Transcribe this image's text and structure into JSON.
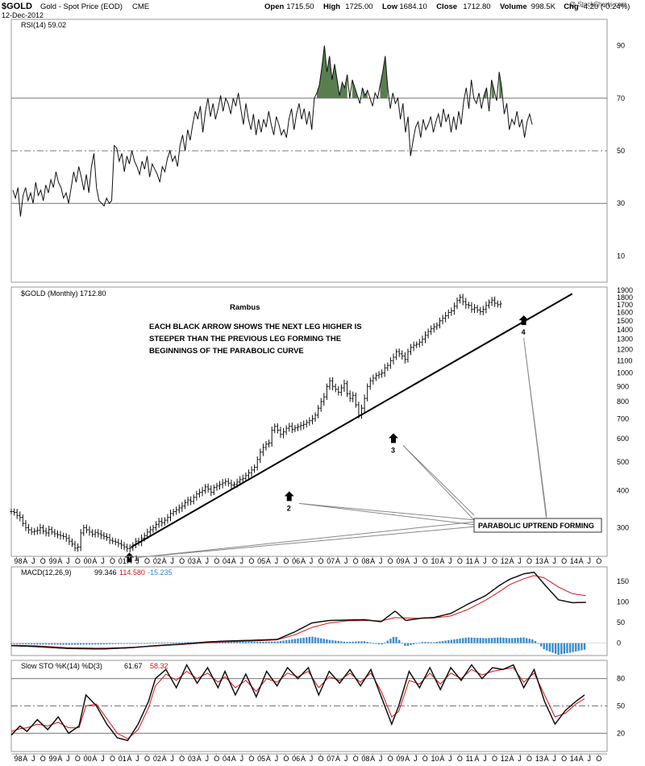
{
  "header": {
    "symbol": "$GOLD",
    "name": "Gold - Spot Price (EOD)",
    "exchange": "CME",
    "date": "12-Dec-2012",
    "copyright": "@ StockCharts.com",
    "stats": [
      {
        "label": "Open",
        "value": "1715.50"
      },
      {
        "label": "High",
        "value": "1725.00"
      },
      {
        "label": "Low",
        "value": "1684.10"
      },
      {
        "label": "Close",
        "value": "1712.80"
      },
      {
        "label": "Volume",
        "value": "998.5K"
      },
      {
        "label": "Chg",
        "value": "-4.20 (-0.24%)"
      }
    ]
  },
  "colors": {
    "rsi_overbought_fill": "#5a7d50",
    "rsi_oversold_fill": "#8a5060",
    "macd_signal": "#e01010",
    "macd_hist": "#3a8ccc",
    "sto_d": "#e01010",
    "histogram_label": "#2a8ad0"
  },
  "chart_data": [
    {
      "type": "line",
      "id": "rsi",
      "legend": "RSI(14) 59.02",
      "ylim": [
        0,
        100
      ],
      "yticks": [
        10,
        30,
        50,
        70,
        90
      ],
      "reference_lines": [
        30,
        50,
        70
      ],
      "last_value": 59.02,
      "values": [
        35,
        32,
        36,
        25,
        33,
        36,
        31,
        34,
        30,
        38,
        33,
        35,
        31,
        37,
        34,
        39,
        36,
        42,
        38,
        36,
        32,
        34,
        30,
        36,
        42,
        38,
        44,
        40,
        35,
        41,
        34,
        44,
        49,
        36,
        31,
        30,
        29,
        32,
        30,
        31,
        52,
        51,
        46,
        49,
        42,
        48,
        45,
        50,
        46,
        44,
        41,
        46,
        43,
        48,
        40,
        45,
        43,
        41,
        38,
        44,
        42,
        47,
        50,
        46,
        48,
        44,
        52,
        56,
        50,
        58,
        54,
        60,
        65,
        62,
        67,
        57,
        65,
        70,
        63,
        68,
        62,
        66,
        71,
        65,
        70,
        68,
        64,
        70,
        67,
        72,
        66,
        60,
        68,
        62,
        58,
        64,
        56,
        62,
        57,
        62,
        59,
        65,
        60,
        56,
        63,
        60,
        56,
        58,
        55,
        62,
        66,
        58,
        64,
        68,
        62,
        66,
        60,
        65,
        58,
        70,
        72,
        75,
        82,
        90,
        80,
        86,
        77,
        83,
        77,
        71,
        76,
        74,
        79,
        70,
        77,
        74,
        71,
        68,
        74,
        71,
        73,
        70,
        67,
        72,
        70,
        75,
        80,
        86,
        74,
        66,
        72,
        68,
        70,
        62,
        68,
        57,
        63,
        48,
        54,
        59,
        61,
        55,
        62,
        58,
        60,
        63,
        57,
        61,
        64,
        59,
        66,
        61,
        64,
        57,
        63,
        58,
        65,
        60,
        69,
        74,
        66,
        77,
        70,
        68,
        72,
        66,
        71,
        74,
        65,
        77,
        73,
        69,
        80,
        74,
        64,
        68,
        58,
        62,
        60,
        65,
        59,
        62,
        55,
        61,
        64,
        60
      ],
      "overbought_level": 70,
      "oversold_level": 30
    },
    {
      "type": "ohlc",
      "id": "price",
      "legend": "$GOLD (Monthly) 1712.80",
      "scale": "log",
      "ylim": [
        240,
        1950
      ],
      "yticks": [
        300,
        400,
        500,
        600,
        700,
        800,
        900,
        1000,
        1100,
        1200,
        1300,
        1400,
        1500,
        1600,
        1700,
        1800,
        1900
      ],
      "x_start": 1997.85,
      "x_end": 2015.0,
      "closes": [
        340,
        338,
        330,
        325,
        310,
        300,
        295,
        290,
        292,
        294,
        300,
        292,
        288,
        296,
        290,
        286,
        284,
        282,
        280,
        276,
        270,
        264,
        256,
        258,
        288,
        300,
        295,
        290,
        285,
        289,
        286,
        283,
        280,
        278,
        272,
        270,
        268,
        265,
        262,
        258,
        255,
        256,
        262,
        270,
        268,
        276,
        282,
        290,
        295,
        300,
        308,
        315,
        312,
        318,
        325,
        335,
        340,
        345,
        350,
        355,
        365,
        372,
        368,
        380,
        390,
        395,
        400,
        412,
        405,
        395,
        410,
        415,
        420,
        425,
        430,
        424,
        418,
        420,
        428,
        436,
        440,
        450,
        460,
        470,
        480,
        510,
        540,
        560,
        575,
        580,
        640,
        660,
        640,
        620,
        632,
        650,
        660,
        645,
        652,
        658,
        665,
        670,
        680,
        690,
        700,
        720,
        760,
        800,
        830,
        900,
        940,
        900,
        880,
        860,
        890,
        920,
        850,
        820,
        840,
        780,
        720,
        760,
        820,
        900,
        940,
        960,
        980,
        990,
        1000,
        1040,
        1060,
        1100,
        1130,
        1180,
        1160,
        1140,
        1110,
        1180,
        1220,
        1240,
        1250,
        1270,
        1300,
        1340,
        1380,
        1410,
        1430,
        1450,
        1500,
        1530,
        1560,
        1600,
        1620,
        1680,
        1760,
        1800,
        1740,
        1700,
        1690,
        1640,
        1660,
        1630,
        1610,
        1640,
        1690,
        1730,
        1760,
        1720,
        1700,
        1712
      ],
      "trendline": {
        "start": {
          "year": 2001.3,
          "price": 258
        },
        "end": {
          "year": 2013.3,
          "price": 1760
        }
      },
      "arrows": [
        {
          "label": "1",
          "year": 2001.25,
          "price": 247
        },
        {
          "label": "2",
          "year": 2005.85,
          "price": 398
        },
        {
          "label": "3",
          "year": 2008.85,
          "price": 625
        },
        {
          "label": "4",
          "year": 2012.6,
          "price": 1565
        }
      ],
      "annotation_author": "Rambus",
      "annotation_text": [
        "EACH BLACK ARROW SHOWS THE NEXT LEG HIGHER IS",
        "STEEPER THAN THE PREVIOUS LEG FORMING THE",
        "BEGINNINGS OF THE PARABOLIC CURVE"
      ],
      "callout": "PARABOLIC UPTREND FORMING"
    },
    {
      "type": "line",
      "id": "macd",
      "legend_name": "MACD(12,26,9)",
      "macd_value": "99.346",
      "signal_value": "114.580",
      "hist_value": "-15.235",
      "yticks": [
        0,
        50,
        100,
        150
      ],
      "ylim": [
        -30,
        185
      ],
      "x_start": 1997.85,
      "x_end": 2015.0,
      "macd": [
        [
          1997.85,
          -6
        ],
        [
          1998.5,
          -8
        ],
        [
          1999.5,
          -13
        ],
        [
          2000.5,
          -14
        ],
        [
          2001.3,
          -11
        ],
        [
          2002,
          -6
        ],
        [
          2002.8,
          -2
        ],
        [
          2003.5,
          3
        ],
        [
          2004,
          5
        ],
        [
          2004.8,
          7
        ],
        [
          2005.5,
          9
        ],
        [
          2006.0,
          27
        ],
        [
          2006.5,
          49
        ],
        [
          2007.0,
          55
        ],
        [
          2007.5,
          56
        ],
        [
          2008.0,
          57
        ],
        [
          2008.5,
          52
        ],
        [
          2008.9,
          78
        ],
        [
          2009.2,
          55
        ],
        [
          2009.7,
          61
        ],
        [
          2010.0,
          62
        ],
        [
          2010.5,
          72
        ],
        [
          2011.0,
          95
        ],
        [
          2011.5,
          115
        ],
        [
          2011.9,
          140
        ],
        [
          2012.2,
          155
        ],
        [
          2012.6,
          168
        ],
        [
          2012.9,
          172
        ],
        [
          2013.2,
          142
        ],
        [
          2013.6,
          105
        ],
        [
          2014.0,
          98
        ],
        [
          2014.4,
          99
        ]
      ],
      "signal": [
        [
          1997.85,
          -5
        ],
        [
          1998.5,
          -6
        ],
        [
          1999.5,
          -11
        ],
        [
          2000.5,
          -12
        ],
        [
          2001.3,
          -10
        ],
        [
          2002,
          -7
        ],
        [
          2002.8,
          -3
        ],
        [
          2003.5,
          1
        ],
        [
          2004,
          3
        ],
        [
          2004.8,
          5
        ],
        [
          2005.5,
          8
        ],
        [
          2006.0,
          20
        ],
        [
          2006.5,
          38
        ],
        [
          2007.0,
          49
        ],
        [
          2007.5,
          54
        ],
        [
          2008.0,
          55
        ],
        [
          2008.5,
          54
        ],
        [
          2008.9,
          62
        ],
        [
          2009.2,
          61
        ],
        [
          2009.7,
          60
        ],
        [
          2010.0,
          61
        ],
        [
          2010.5,
          66
        ],
        [
          2011.0,
          82
        ],
        [
          2011.5,
          104
        ],
        [
          2011.9,
          125
        ],
        [
          2012.2,
          142
        ],
        [
          2012.6,
          156
        ],
        [
          2012.9,
          164
        ],
        [
          2013.2,
          158
        ],
        [
          2013.6,
          136
        ],
        [
          2014.0,
          120
        ],
        [
          2014.4,
          115
        ]
      ],
      "histogram": [
        [
          1997.85,
          -2
        ],
        [
          1998.5,
          -3
        ],
        [
          1999.5,
          -4
        ],
        [
          2000.5,
          -3
        ],
        [
          2001.3,
          -1
        ],
        [
          2002,
          1
        ],
        [
          2002.8,
          2
        ],
        [
          2003.5,
          3
        ],
        [
          2004,
          3
        ],
        [
          2004.8,
          3
        ],
        [
          2005.5,
          4
        ],
        [
          2006.0,
          10
        ],
        [
          2006.5,
          16
        ],
        [
          2007.0,
          8
        ],
        [
          2007.5,
          3
        ],
        [
          2008.0,
          5
        ],
        [
          2008.5,
          -4
        ],
        [
          2008.9,
          18
        ],
        [
          2009.2,
          -8
        ],
        [
          2009.7,
          3
        ],
        [
          2010.0,
          2
        ],
        [
          2010.5,
          8
        ],
        [
          2011.0,
          14
        ],
        [
          2011.5,
          12
        ],
        [
          2011.9,
          14
        ],
        [
          2012.2,
          12
        ],
        [
          2012.6,
          14
        ],
        [
          2012.9,
          8
        ],
        [
          2013.2,
          -16
        ],
        [
          2013.6,
          -28
        ],
        [
          2014.0,
          -22
        ],
        [
          2014.4,
          -15
        ]
      ]
    },
    {
      "type": "line",
      "id": "sto",
      "legend_name": "Slow STO %K(14) %D(3)",
      "k_value": "61.67",
      "d_value": "58.32",
      "ylim": [
        0,
        100
      ],
      "yticks": [
        20,
        50,
        80
      ],
      "reference_lines": [
        20,
        50,
        80
      ],
      "x_start": 1997.85,
      "x_end": 2015.0,
      "k": [
        [
          1997.85,
          18
        ],
        [
          1998.1,
          28
        ],
        [
          1998.3,
          22
        ],
        [
          1998.6,
          35
        ],
        [
          1998.9,
          24
        ],
        [
          1999.2,
          38
        ],
        [
          1999.5,
          20
        ],
        [
          1999.8,
          28
        ],
        [
          2000.0,
          62
        ],
        [
          2000.3,
          50
        ],
        [
          2000.6,
          30
        ],
        [
          2000.9,
          15
        ],
        [
          2001.2,
          12
        ],
        [
          2001.5,
          30
        ],
        [
          2001.8,
          55
        ],
        [
          2002.0,
          80
        ],
        [
          2002.3,
          90
        ],
        [
          2002.6,
          70
        ],
        [
          2002.9,
          95
        ],
        [
          2003.2,
          75
        ],
        [
          2003.5,
          92
        ],
        [
          2003.8,
          70
        ],
        [
          2004.0,
          88
        ],
        [
          2004.3,
          62
        ],
        [
          2004.6,
          85
        ],
        [
          2004.9,
          60
        ],
        [
          2005.2,
          88
        ],
        [
          2005.5,
          72
        ],
        [
          2005.8,
          92
        ],
        [
          2006.1,
          80
        ],
        [
          2006.4,
          92
        ],
        [
          2006.7,
          62
        ],
        [
          2007.0,
          88
        ],
        [
          2007.3,
          75
        ],
        [
          2007.6,
          90
        ],
        [
          2007.9,
          72
        ],
        [
          2008.2,
          90
        ],
        [
          2008.5,
          60
        ],
        [
          2008.8,
          30
        ],
        [
          2009.0,
          50
        ],
        [
          2009.3,
          88
        ],
        [
          2009.6,
          70
        ],
        [
          2009.9,
          92
        ],
        [
          2010.2,
          68
        ],
        [
          2010.5,
          92
        ],
        [
          2010.8,
          78
        ],
        [
          2011.1,
          95
        ],
        [
          2011.4,
          80
        ],
        [
          2011.7,
          92
        ],
        [
          2012.0,
          90
        ],
        [
          2012.3,
          95
        ],
        [
          2012.6,
          70
        ],
        [
          2012.9,
          90
        ],
        [
          2013.2,
          55
        ],
        [
          2013.5,
          30
        ],
        [
          2013.8,
          45
        ],
        [
          2014.1,
          55
        ],
        [
          2014.35,
          62
        ]
      ],
      "d": [
        [
          1997.85,
          22
        ],
        [
          1998.1,
          25
        ],
        [
          1998.3,
          26
        ],
        [
          1998.6,
          30
        ],
        [
          1998.9,
          28
        ],
        [
          1999.2,
          32
        ],
        [
          1999.5,
          26
        ],
        [
          1999.8,
          26
        ],
        [
          2000.0,
          50
        ],
        [
          2000.3,
          52
        ],
        [
          2000.6,
          36
        ],
        [
          2000.9,
          20
        ],
        [
          2001.2,
          14
        ],
        [
          2001.5,
          24
        ],
        [
          2001.8,
          48
        ],
        [
          2002.0,
          72
        ],
        [
          2002.3,
          85
        ],
        [
          2002.6,
          78
        ],
        [
          2002.9,
          88
        ],
        [
          2003.2,
          80
        ],
        [
          2003.5,
          86
        ],
        [
          2003.8,
          76
        ],
        [
          2004.0,
          82
        ],
        [
          2004.3,
          70
        ],
        [
          2004.6,
          78
        ],
        [
          2004.9,
          66
        ],
        [
          2005.2,
          80
        ],
        [
          2005.5,
          76
        ],
        [
          2005.8,
          86
        ],
        [
          2006.1,
          82
        ],
        [
          2006.4,
          88
        ],
        [
          2006.7,
          70
        ],
        [
          2007.0,
          82
        ],
        [
          2007.3,
          78
        ],
        [
          2007.6,
          86
        ],
        [
          2007.9,
          76
        ],
        [
          2008.2,
          86
        ],
        [
          2008.5,
          66
        ],
        [
          2008.8,
          38
        ],
        [
          2009.0,
          44
        ],
        [
          2009.3,
          78
        ],
        [
          2009.6,
          74
        ],
        [
          2009.9,
          86
        ],
        [
          2010.2,
          74
        ],
        [
          2010.5,
          86
        ],
        [
          2010.8,
          80
        ],
        [
          2011.1,
          90
        ],
        [
          2011.4,
          84
        ],
        [
          2011.7,
          88
        ],
        [
          2012.0,
          90
        ],
        [
          2012.3,
          92
        ],
        [
          2012.6,
          76
        ],
        [
          2012.9,
          86
        ],
        [
          2013.2,
          62
        ],
        [
          2013.5,
          38
        ],
        [
          2013.8,
          42
        ],
        [
          2014.1,
          52
        ],
        [
          2014.35,
          58
        ]
      ]
    }
  ],
  "axis": {
    "x_start": 1997.85,
    "x_end": 2015.0,
    "year_labels": [
      "98",
      "99",
      "00",
      "01",
      "02",
      "03",
      "04",
      "05",
      "06",
      "07",
      "08",
      "09",
      "10",
      "11",
      "12",
      "13",
      "14"
    ],
    "month_labels": [
      "J",
      "A",
      "J",
      "O"
    ],
    "first_label": "J"
  }
}
